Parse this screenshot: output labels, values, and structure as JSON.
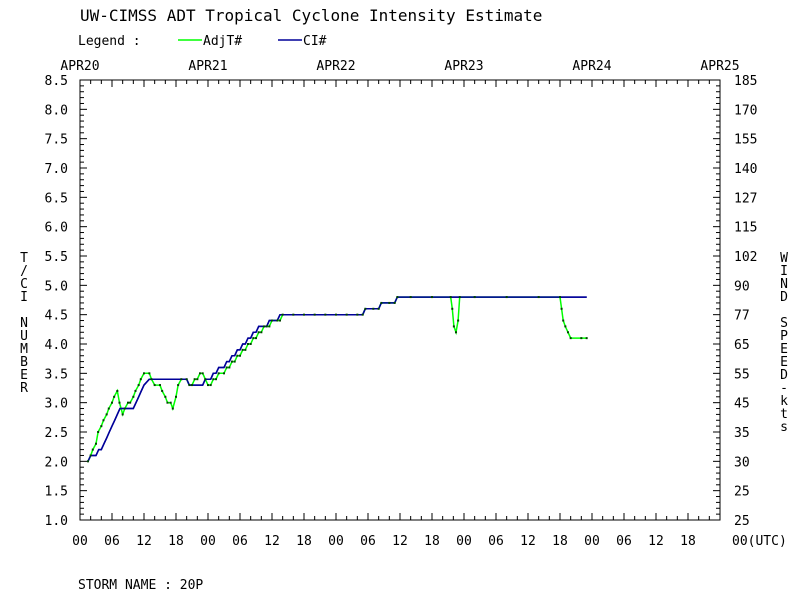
{
  "chart_data": {
    "type": "line",
    "title": "UW-CIMSS ADT Tropical Cyclone Intensity Estimate",
    "legend_label": "Legend :",
    "legend_position": "top-left",
    "series": [
      {
        "name": "AdjT#",
        "color": "#00ff00",
        "points": [
          [
            1.5,
            2.0
          ],
          [
            2.0,
            2.1
          ],
          [
            2.4,
            2.2
          ],
          [
            3.0,
            2.3
          ],
          [
            3.4,
            2.5
          ],
          [
            4.0,
            2.6
          ],
          [
            4.4,
            2.7
          ],
          [
            5.0,
            2.8
          ],
          [
            5.4,
            2.9
          ],
          [
            6.0,
            3.0
          ],
          [
            6.4,
            3.1
          ],
          [
            7.0,
            3.2
          ],
          [
            7.4,
            3.0
          ],
          [
            8.0,
            2.8
          ],
          [
            8.4,
            2.9
          ],
          [
            9.0,
            3.0
          ],
          [
            9.4,
            3.0
          ],
          [
            10.0,
            3.1
          ],
          [
            10.4,
            3.2
          ],
          [
            11.0,
            3.3
          ],
          [
            11.4,
            3.4
          ],
          [
            12.0,
            3.5
          ],
          [
            13.0,
            3.5
          ],
          [
            13.4,
            3.4
          ],
          [
            14.0,
            3.3
          ],
          [
            15.0,
            3.3
          ],
          [
            15.4,
            3.2
          ],
          [
            16.0,
            3.1
          ],
          [
            16.4,
            3.0
          ],
          [
            17.0,
            3.0
          ],
          [
            17.4,
            2.9
          ],
          [
            18.0,
            3.1
          ],
          [
            18.4,
            3.3
          ],
          [
            19.0,
            3.4
          ],
          [
            20.0,
            3.4
          ],
          [
            20.5,
            3.3
          ],
          [
            21.0,
            3.3
          ],
          [
            21.5,
            3.4
          ],
          [
            22.0,
            3.4
          ],
          [
            22.5,
            3.5
          ],
          [
            23.0,
            3.5
          ],
          [
            23.5,
            3.4
          ],
          [
            24.0,
            3.3
          ],
          [
            24.5,
            3.3
          ],
          [
            25.0,
            3.4
          ],
          [
            25.5,
            3.4
          ],
          [
            26.0,
            3.5
          ],
          [
            27.0,
            3.5
          ],
          [
            27.5,
            3.6
          ],
          [
            28.0,
            3.6
          ],
          [
            28.5,
            3.7
          ],
          [
            29.0,
            3.7
          ],
          [
            29.5,
            3.8
          ],
          [
            30.0,
            3.8
          ],
          [
            30.5,
            3.9
          ],
          [
            31.0,
            3.9
          ],
          [
            31.5,
            4.0
          ],
          [
            32.0,
            4.0
          ],
          [
            32.5,
            4.1
          ],
          [
            33.0,
            4.1
          ],
          [
            33.5,
            4.2
          ],
          [
            34.0,
            4.2
          ],
          [
            34.5,
            4.3
          ],
          [
            35.0,
            4.3
          ],
          [
            35.5,
            4.3
          ],
          [
            36.0,
            4.4
          ],
          [
            37.0,
            4.4
          ],
          [
            37.5,
            4.4
          ],
          [
            38.0,
            4.5
          ],
          [
            40.0,
            4.5
          ],
          [
            42.0,
            4.5
          ],
          [
            44.0,
            4.5
          ],
          [
            46.0,
            4.5
          ],
          [
            48.0,
            4.5
          ],
          [
            50.0,
            4.5
          ],
          [
            52.0,
            4.5
          ],
          [
            53.0,
            4.5
          ],
          [
            53.5,
            4.6
          ],
          [
            55.0,
            4.6
          ],
          [
            56.0,
            4.6
          ],
          [
            56.5,
            4.7
          ],
          [
            58.0,
            4.7
          ],
          [
            59.0,
            4.7
          ],
          [
            59.5,
            4.8
          ],
          [
            62.0,
            4.8
          ],
          [
            66.0,
            4.8
          ],
          [
            69.5,
            4.8
          ],
          [
            69.8,
            4.6
          ],
          [
            70.1,
            4.3
          ],
          [
            70.5,
            4.2
          ],
          [
            70.9,
            4.4
          ],
          [
            71.2,
            4.8
          ],
          [
            74.0,
            4.8
          ],
          [
            80.0,
            4.8
          ],
          [
            86.0,
            4.8
          ],
          [
            90.0,
            4.8
          ],
          [
            90.3,
            4.6
          ],
          [
            90.6,
            4.4
          ],
          [
            91.0,
            4.3
          ],
          [
            91.5,
            4.2
          ],
          [
            92.0,
            4.1
          ],
          [
            94.0,
            4.1
          ],
          [
            95.0,
            4.1
          ]
        ]
      },
      {
        "name": "CI#",
        "color": "#000099",
        "points": [
          [
            1.5,
            2.0
          ],
          [
            2.0,
            2.1
          ],
          [
            3.0,
            2.1
          ],
          [
            3.5,
            2.2
          ],
          [
            4.0,
            2.2
          ],
          [
            4.5,
            2.3
          ],
          [
            5.0,
            2.4
          ],
          [
            5.5,
            2.5
          ],
          [
            6.0,
            2.6
          ],
          [
            6.5,
            2.7
          ],
          [
            7.0,
            2.8
          ],
          [
            7.5,
            2.9
          ],
          [
            9.0,
            2.9
          ],
          [
            10.0,
            2.9
          ],
          [
            10.5,
            3.0
          ],
          [
            11.0,
            3.1
          ],
          [
            11.5,
            3.2
          ],
          [
            12.0,
            3.3
          ],
          [
            13.0,
            3.4
          ],
          [
            15.0,
            3.4
          ],
          [
            17.0,
            3.4
          ],
          [
            19.0,
            3.4
          ],
          [
            20.0,
            3.4
          ],
          [
            20.5,
            3.3
          ],
          [
            22.0,
            3.3
          ],
          [
            23.0,
            3.3
          ],
          [
            23.5,
            3.4
          ],
          [
            24.0,
            3.4
          ],
          [
            24.5,
            3.4
          ],
          [
            25.0,
            3.5
          ],
          [
            25.5,
            3.5
          ],
          [
            26.0,
            3.6
          ],
          [
            27.0,
            3.6
          ],
          [
            27.5,
            3.7
          ],
          [
            28.0,
            3.7
          ],
          [
            28.5,
            3.8
          ],
          [
            29.0,
            3.8
          ],
          [
            29.5,
            3.9
          ],
          [
            30.0,
            3.9
          ],
          [
            30.5,
            4.0
          ],
          [
            31.0,
            4.0
          ],
          [
            31.5,
            4.1
          ],
          [
            32.0,
            4.1
          ],
          [
            32.5,
            4.2
          ],
          [
            33.0,
            4.2
          ],
          [
            33.5,
            4.3
          ],
          [
            34.0,
            4.3
          ],
          [
            35.0,
            4.3
          ],
          [
            35.5,
            4.4
          ],
          [
            37.0,
            4.4
          ],
          [
            37.5,
            4.5
          ],
          [
            40.0,
            4.5
          ],
          [
            46.0,
            4.5
          ],
          [
            52.0,
            4.5
          ],
          [
            53.0,
            4.5
          ],
          [
            53.5,
            4.6
          ],
          [
            56.0,
            4.6
          ],
          [
            56.5,
            4.7
          ],
          [
            59.0,
            4.7
          ],
          [
            59.5,
            4.8
          ],
          [
            65.0,
            4.8
          ],
          [
            75.0,
            4.8
          ],
          [
            85.0,
            4.8
          ],
          [
            95.0,
            4.8
          ]
        ]
      }
    ],
    "x_unit": "hours since APR20 00 UTC",
    "xlim": [
      0,
      120
    ],
    "x_tick_step": 6,
    "x_tick_labels": [
      "00",
      "06",
      "12",
      "18",
      "00",
      "06",
      "12",
      "18",
      "00",
      "06",
      "12",
      "18",
      "00",
      "06",
      "12",
      "18",
      "00",
      "06",
      "12",
      "18",
      "00"
    ],
    "x_end_label": "00(UTC)",
    "top_date_labels": [
      "APR20",
      "APR21",
      "APR22",
      "APR23",
      "APR24",
      "APR25"
    ],
    "ylim": [
      1.0,
      8.5
    ],
    "ylabel": "T/CI NUMBER",
    "y_tick_labels": [
      "8.5",
      "8.0",
      "7.5",
      "7.0",
      "6.5",
      "6.0",
      "5.5",
      "5.0",
      "4.5",
      "4.0",
      "3.5",
      "3.0",
      "2.5",
      "2.0",
      "1.5",
      "1.0"
    ],
    "y_tick_values": [
      8.5,
      8.0,
      7.5,
      7.0,
      6.5,
      6.0,
      5.5,
      5.0,
      4.5,
      4.0,
      3.5,
      3.0,
      2.5,
      2.0,
      1.5,
      1.0
    ],
    "y2label": "WIND SPEED-kts",
    "y2_tick_labels": [
      "185",
      "170",
      "155",
      "140",
      "127",
      "115",
      "102",
      "90",
      "77",
      "65",
      "55",
      "45",
      "35",
      "30",
      "25",
      "25"
    ],
    "storm_name_label": "STORM NAME : 20P",
    "grid": false
  }
}
